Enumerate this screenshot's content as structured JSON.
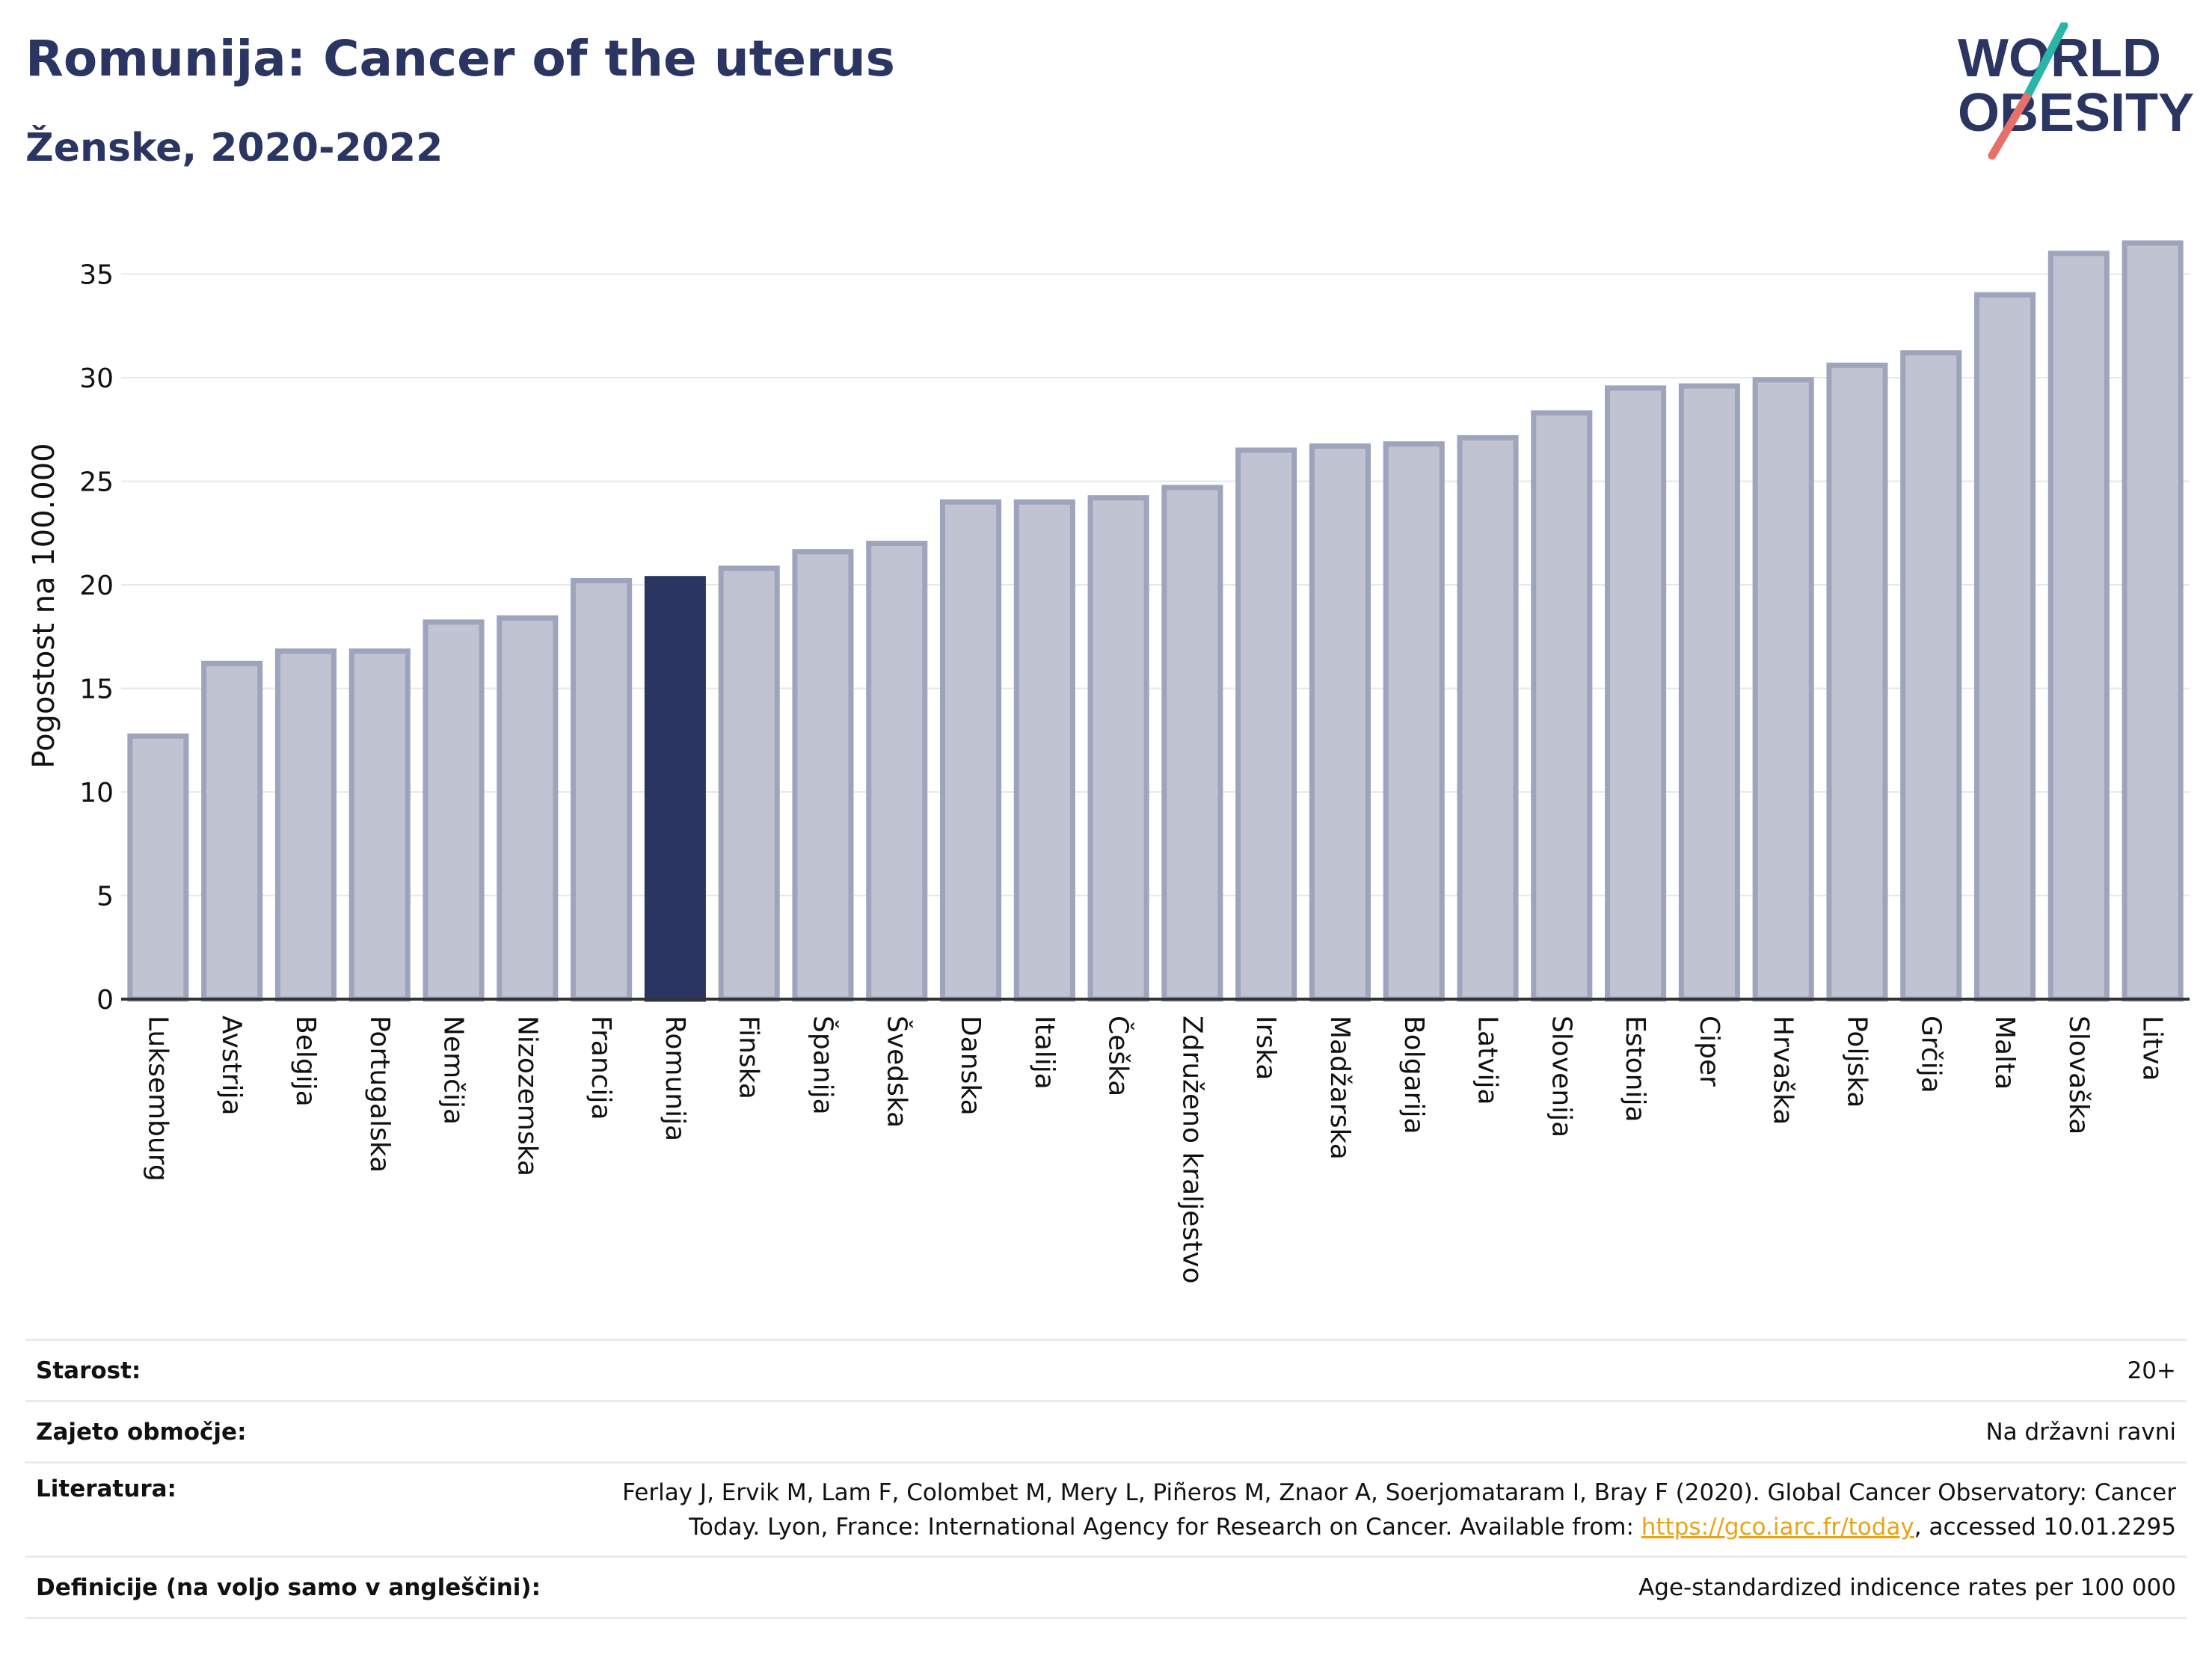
{
  "header": {
    "title": "Romunija: Cancer of the uterus",
    "subtitle": "Ženske, 2020-2022"
  },
  "logo": {
    "line1": "WORLD",
    "line2": "OBESITY",
    "colors": {
      "text": "#2b3562",
      "slash_top": "#2bb5a8",
      "slash_bottom": "#e8706a"
    }
  },
  "colors": {
    "bar_fill": "#c0c3d1",
    "bar_stroke": "#9fa4bd",
    "highlight_fill": "#2b3562",
    "grid": "#e6e8ef",
    "axis": "#333333"
  },
  "chart_data": {
    "type": "bar",
    "title": "Romunija: Cancer of the uterus",
    "subtitle": "Ženske, 2020-2022",
    "xlabel": "",
    "ylabel": "Pogostost na 100.000",
    "ylim": [
      0,
      37
    ],
    "yticks": [
      0,
      5,
      10,
      15,
      20,
      25,
      30,
      35
    ],
    "grid": "horizontal",
    "highlight": "Romunija",
    "categories": [
      "Luksemburg",
      "Avstrija",
      "Belgija",
      "Portugalska",
      "Nemčija",
      "Nizozemska",
      "Francija",
      "Romunija",
      "Finska",
      "Španija",
      "Švedska",
      "Danska",
      "Italija",
      "Češka",
      "Združeno kraljestvo",
      "Irska",
      "Madžarska",
      "Bolgarija",
      "Latvija",
      "Slovenija",
      "Estonija",
      "Ciper",
      "Hrvaška",
      "Poljska",
      "Grčija",
      "Malta",
      "Slovaška",
      "Litva"
    ],
    "values": [
      12.7,
      16.2,
      16.8,
      16.8,
      18.2,
      18.4,
      20.2,
      20.3,
      20.8,
      21.6,
      22.0,
      24.0,
      24.0,
      24.2,
      24.7,
      26.5,
      26.7,
      26.8,
      27.1,
      28.3,
      29.5,
      29.6,
      29.9,
      30.6,
      31.2,
      34.0,
      36.0,
      36.5
    ]
  },
  "meta": [
    {
      "label": "Starost:",
      "value": "20+"
    },
    {
      "label": "Zajeto območje:",
      "value": "Na državni ravni"
    },
    {
      "label": "Literatura:",
      "value_line1": "Ferlay J, Ervik M, Lam F, Colombet M, Mery L, Piñeros M, Znaor A, Soerjomataram I, Bray F (2020). Global Cancer Observatory: Cancer",
      "value_line2_pre": "Today. Lyon, France: International Agency for Research on Cancer. Available from: ",
      "link": "https://gco.iarc.fr/today",
      "value_line2_post": ", accessed 10.01.2295"
    },
    {
      "label": "Definicije (na voljo samo v angleščini):",
      "value": "Age-standardized indicence rates per 100 000"
    }
  ]
}
